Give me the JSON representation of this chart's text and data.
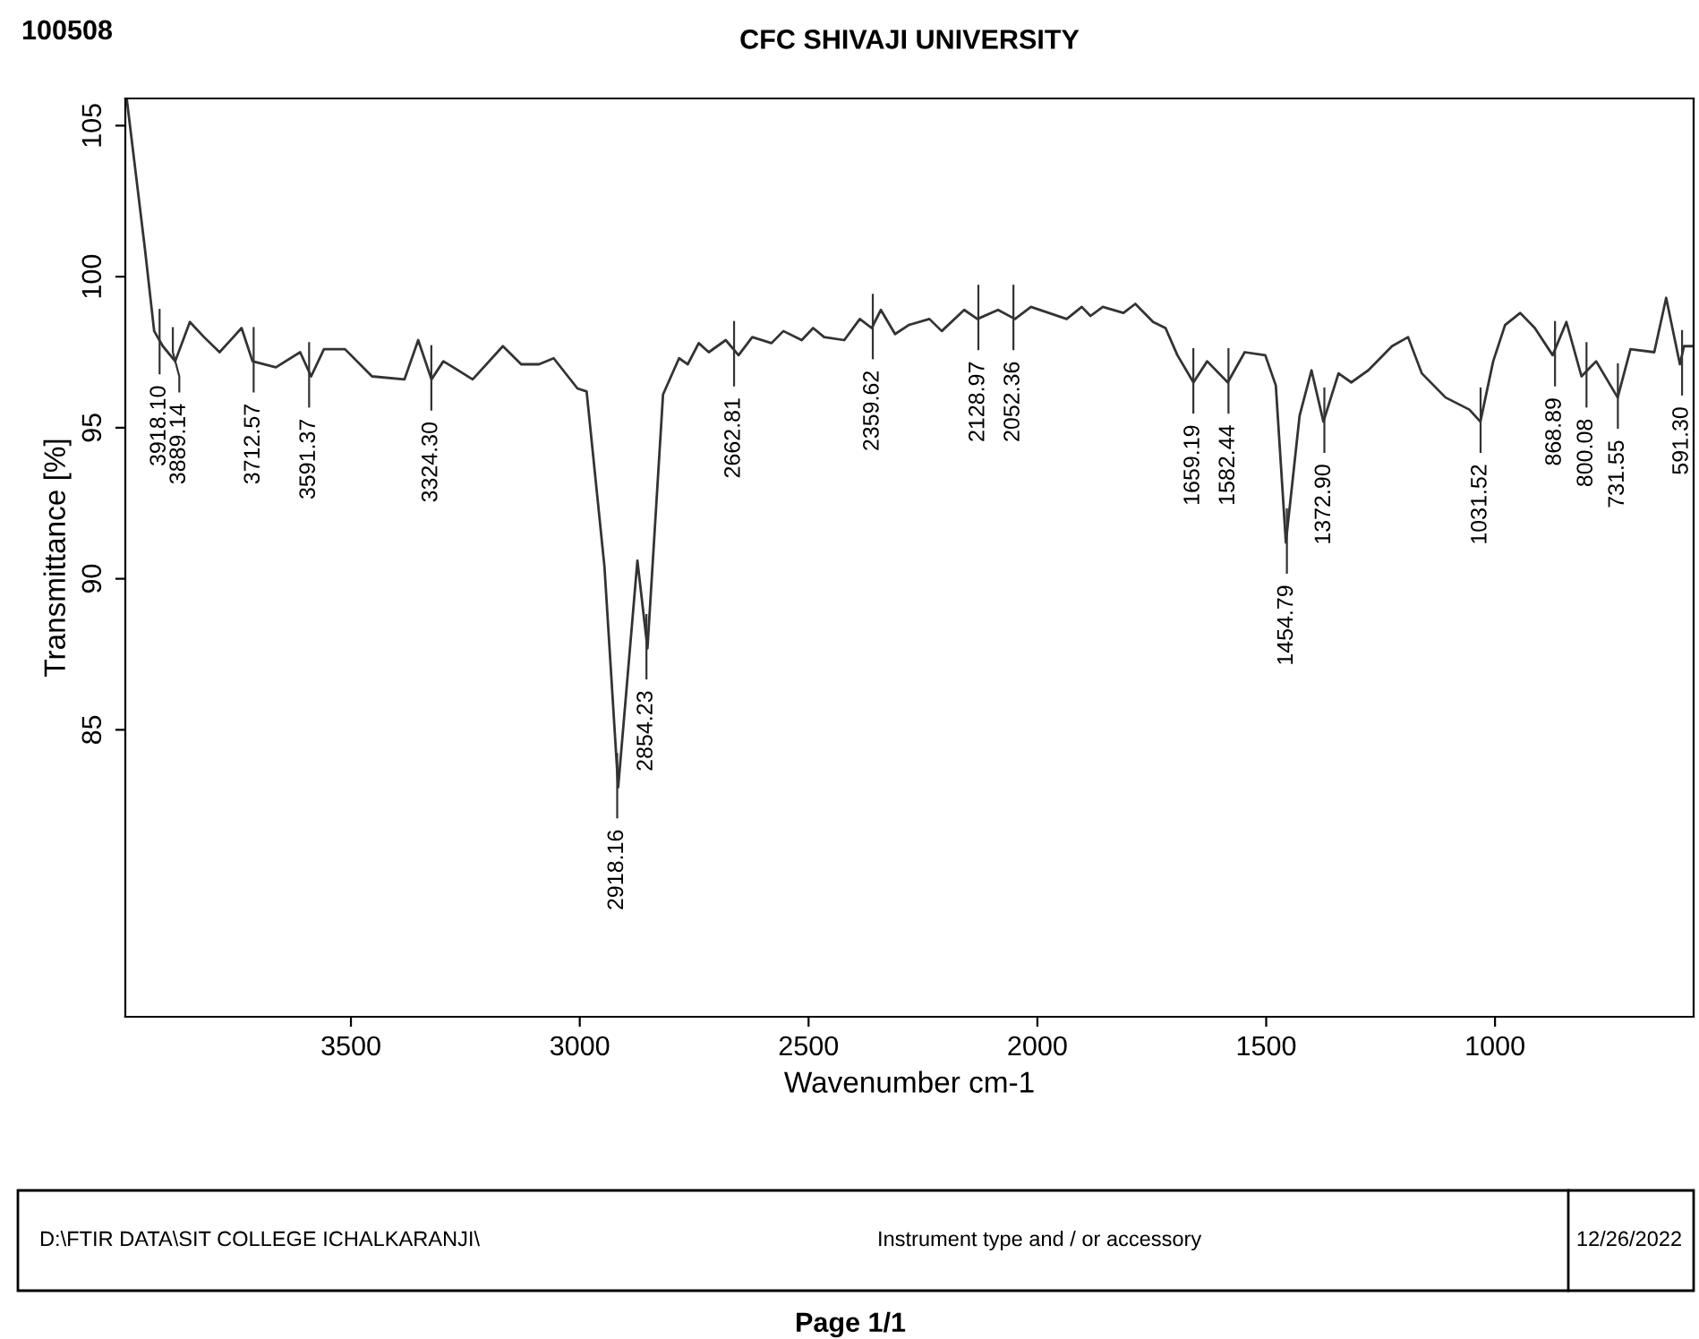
{
  "chart_data": {
    "type": "line",
    "title": "CFC SHIVAJI UNIVERSITY",
    "xlabel": "Wavenumber cm-1",
    "ylabel": "Transmittance [%]",
    "x": [
      3990,
      3950,
      3930,
      3911,
      3884,
      3852,
      3821,
      3787,
      3739,
      3715,
      3664,
      3611,
      3587,
      3559,
      3513,
      3454,
      3383,
      3353,
      3324,
      3298,
      3234,
      3168,
      3128,
      3089,
      3057,
      3005,
      2985,
      2946,
      2916,
      2874,
      2852,
      2818,
      2783,
      2764,
      2740,
      2718,
      2681,
      2653,
      2623,
      2581,
      2555,
      2515,
      2490,
      2466,
      2422,
      2388,
      2362,
      2342,
      2311,
      2281,
      2236,
      2209,
      2160,
      2131,
      2086,
      2049,
      2014,
      1936,
      1903,
      1884,
      1857,
      1812,
      1786,
      1747,
      1720,
      1694,
      1659,
      1629,
      1584,
      1547,
      1502,
      1479,
      1457,
      1427,
      1401,
      1375,
      1342,
      1314,
      1277,
      1225,
      1190,
      1160,
      1108,
      1056,
      1032,
      1004,
      978,
      945,
      913,
      874,
      844,
      811,
      779,
      732,
      704,
      652,
      626,
      596,
      587,
      566
    ],
    "series": [
      {
        "color": "#333333",
        "values": [
          105.9,
          100.9,
          98.2,
          97.7,
          97.2,
          98.5,
          98.0,
          97.5,
          98.3,
          97.2,
          97.0,
          97.5,
          96.7,
          97.6,
          97.6,
          96.7,
          96.6,
          97.9,
          96.6,
          97.2,
          96.6,
          97.7,
          97.1,
          97.1,
          97.3,
          96.3,
          96.2,
          90.4,
          83.1,
          90.6,
          87.7,
          96.1,
          97.3,
          97.1,
          97.8,
          97.5,
          97.9,
          97.4,
          98.0,
          97.8,
          98.2,
          97.9,
          98.3,
          98.0,
          97.9,
          98.6,
          98.3,
          98.9,
          98.1,
          98.4,
          98.6,
          98.2,
          98.9,
          98.6,
          98.9,
          98.6,
          99.0,
          98.6,
          99.0,
          98.7,
          99.0,
          98.8,
          99.1,
          98.5,
          98.3,
          97.4,
          96.5,
          97.2,
          96.5,
          97.5,
          97.4,
          96.4,
          91.2,
          95.4,
          96.9,
          95.2,
          96.8,
          96.5,
          96.9,
          97.7,
          98.0,
          96.8,
          96.0,
          95.6,
          95.2,
          97.2,
          98.4,
          98.8,
          98.3,
          97.4,
          98.5,
          96.7,
          97.2,
          96.0,
          97.6,
          97.5,
          99.3,
          97.1,
          97.7,
          97.7
        ]
      }
    ],
    "xlim": [
      3993,
      566
    ],
    "ylim": [
      75.5,
      105.9
    ],
    "xticks": [
      3500,
      3000,
      2500,
      2000,
      1500,
      1000
    ],
    "yticks": [
      85,
      90,
      95,
      100,
      105
    ],
    "grid": false,
    "legend": false,
    "marker": "none",
    "line_style": "solid",
    "annotations": [
      "100508",
      "D:\\FTIR DATA\\SIT COLLEGE ICHALKARANJI\\",
      "Instrument type and / or accessory",
      "12/26/2022",
      "Page 1/1",
      {
        "text": "3918.10",
        "x": 3918.1,
        "y": 97.8
      },
      {
        "text": "3889.14",
        "x": 3889.14,
        "y": 97.2
      },
      {
        "text": "3712.57",
        "x": 3712.57,
        "y": 97.2
      },
      {
        "text": "3591.37",
        "x": 3591.37,
        "y": 96.7
      },
      {
        "text": "3324.30",
        "x": 3324.3,
        "y": 96.6
      },
      {
        "text": "2918.16",
        "x": 2918.16,
        "y": 83.1
      },
      {
        "text": "2854.23",
        "x": 2854.23,
        "y": 87.7
      },
      {
        "text": "2662.81",
        "x": 2662.81,
        "y": 97.4
      },
      {
        "text": "2359.62",
        "x": 2359.62,
        "y": 98.3
      },
      {
        "text": "2128.97",
        "x": 2128.97,
        "y": 98.6
      },
      {
        "text": "2052.36",
        "x": 2052.36,
        "y": 98.6
      },
      {
        "text": "1659.19",
        "x": 1659.19,
        "y": 96.5
      },
      {
        "text": "1582.44",
        "x": 1582.44,
        "y": 96.5
      },
      {
        "text": "1454.79",
        "x": 1454.79,
        "y": 91.2
      },
      {
        "text": "1372.90",
        "x": 1372.9,
        "y": 95.2
      },
      {
        "text": "1031.52",
        "x": 1031.52,
        "y": 95.2
      },
      {
        "text": "868.89",
        "x": 868.89,
        "y": 97.4
      },
      {
        "text": "800.08",
        "x": 800.08,
        "y": 96.7
      },
      {
        "text": "731.55",
        "x": 731.55,
        "y": 96.0
      },
      {
        "text": "591.30",
        "x": 591.3,
        "y": 97.1
      }
    ]
  }
}
